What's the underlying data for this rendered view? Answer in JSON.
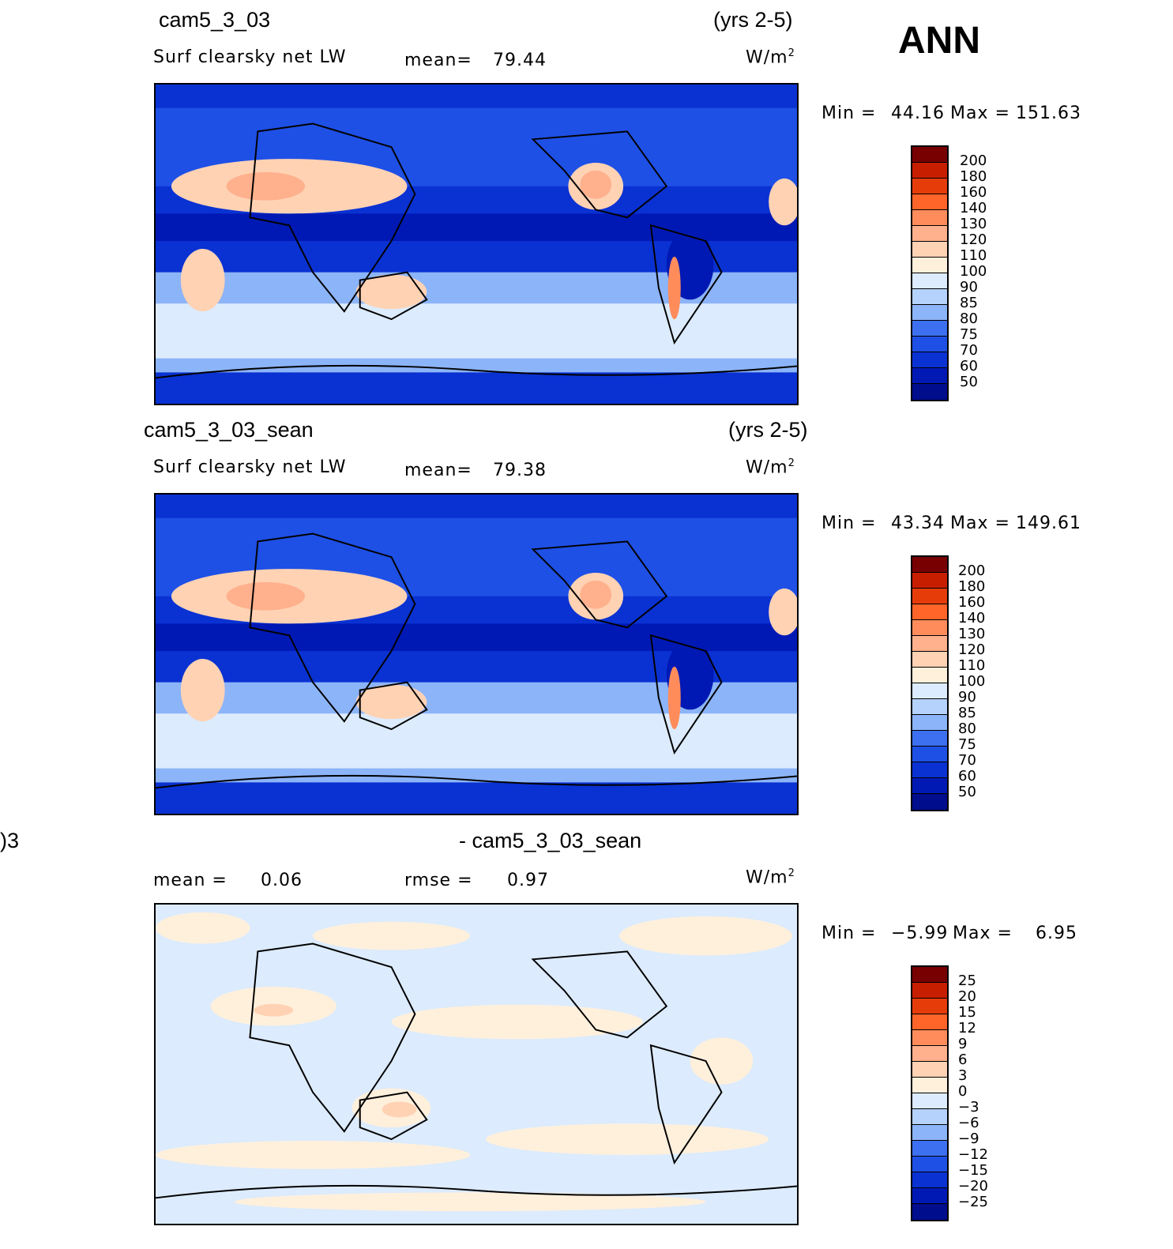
{
  "season": "ANN",
  "colors": {
    "abs_palette": [
      "#000d8c",
      "#0019b4",
      "#0a32d2",
      "#1e50e6",
      "#3c70f0",
      "#6496f5",
      "#8cb4f8",
      "#b4d2fb",
      "#dcebfd",
      "#fff0dc",
      "#ffd2b4",
      "#ffb08c",
      "#ff8c5a",
      "#ff6428",
      "#e63c0a",
      "#c81e00",
      "#a00a00",
      "#780000"
    ],
    "diff_palette": [
      "#000d8c",
      "#0019b4",
      "#0a32d2",
      "#1e50e6",
      "#3c70f0",
      "#6496f5",
      "#8cb4f8",
      "#b4d2fb",
      "#dcebfd",
      "#fff0dc",
      "#ffd2b4",
      "#ffb08c",
      "#ff8c5a",
      "#ff6428",
      "#e63c0a",
      "#c81e00",
      "#a00a00",
      "#780000"
    ]
  },
  "panels": [
    {
      "case_name": "cam5_3_03",
      "years": "(yrs 2-5)",
      "variable": "Surf  clearsky  net  LW",
      "mean_label": "mean=",
      "mean_value": "79.44",
      "units": "W/m",
      "units_sup": "2",
      "min_label": "Min  =",
      "min_value": "44.16",
      "max_label": "Max  =",
      "max_value": "151.63",
      "colorbar_labels": [
        "200",
        "180",
        "160",
        "140",
        "130",
        "120",
        "110",
        "100",
        "90",
        "85",
        "80",
        "75",
        "70",
        "60",
        "50"
      ]
    },
    {
      "case_name": "cam5_3_03_sean",
      "years": "(yrs 2-5)",
      "variable": "Surf  clearsky  net  LW",
      "mean_label": "mean=",
      "mean_value": "79.38",
      "units": "W/m",
      "units_sup": "2",
      "min_label": "Min  =",
      "min_value": "43.34",
      "max_label": "Max  =",
      "max_value": "149.61",
      "colorbar_labels": [
        "200",
        "180",
        "160",
        "140",
        "130",
        "120",
        "110",
        "100",
        "90",
        "85",
        "80",
        "75",
        "70",
        "60",
        "50"
      ]
    },
    {
      "case_name_left": ")3",
      "case_name": "- cam5_3_03_sean",
      "mean_label": "mean  =",
      "mean_value": "0.06",
      "rmse_label": "rmse  =",
      "rmse_value": "0.97",
      "units": "W/m",
      "units_sup": "2",
      "min_label": "Min  =",
      "min_value": "−5.99",
      "max_label": "Max  =",
      "max_value": "6.95",
      "colorbar_labels": [
        "25",
        "20",
        "15",
        "12",
        "9",
        "6",
        "3",
        "0",
        "−3",
        "−6",
        "−9",
        "−12",
        "−15",
        "−20",
        "−25"
      ]
    }
  ]
}
